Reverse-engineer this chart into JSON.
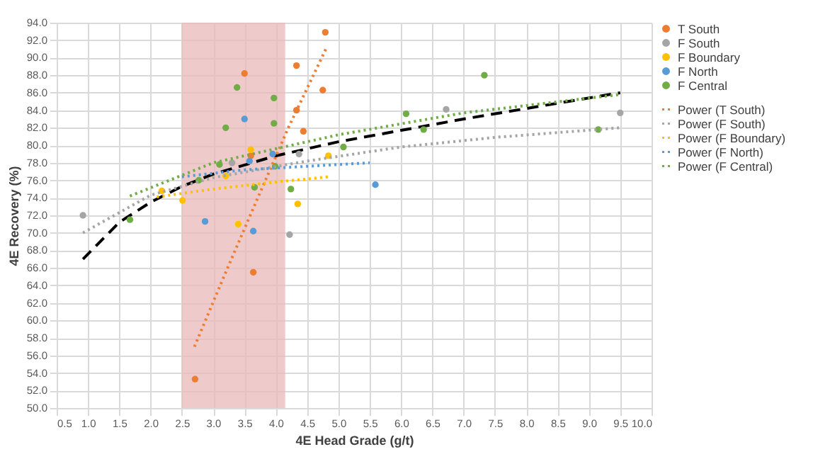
{
  "chart_data": {
    "type": "scatter",
    "xlabel": "4E Head Grade (g/t)",
    "ylabel": "4E Recovery (%)",
    "xlim": [
      0.5,
      10.0
    ],
    "ylim": [
      50.0,
      94.0
    ],
    "xticks": [
      {
        "value": 0.5,
        "label": "0.5"
      },
      {
        "value": 1,
        "label": "1.0"
      },
      {
        "value": 1.5,
        "label": "1.5"
      },
      {
        "value": 2,
        "label": "2.0"
      },
      {
        "value": 2.5,
        "label": "2.5"
      },
      {
        "value": 3,
        "label": "3.0"
      },
      {
        "value": 3.5,
        "label": "3.5"
      },
      {
        "value": 4,
        "label": "4.0"
      },
      {
        "value": 4.5,
        "label": "4.5"
      },
      {
        "value": 5,
        "label": "5.0"
      },
      {
        "value": 5.5,
        "label": "5.5"
      },
      {
        "value": 6,
        "label": "6.0"
      },
      {
        "value": 6.5,
        "label": "6.5"
      },
      {
        "value": 7,
        "label": "7.0"
      },
      {
        "value": 7.5,
        "label": "7.5"
      },
      {
        "value": 8,
        "label": "8.0"
      },
      {
        "value": 8.5,
        "label": "8.5"
      },
      {
        "value": 9,
        "label": "9.0"
      },
      {
        "value": 9.5,
        "label": "9.5"
      },
      {
        "value": 10,
        "label": "10.0"
      }
    ],
    "yticks": [
      {
        "value": 50,
        "label": "50.0"
      },
      {
        "value": 52,
        "label": "52.0"
      },
      {
        "value": 54,
        "label": "54.0"
      },
      {
        "value": 56,
        "label": "56.0"
      },
      {
        "value": 58,
        "label": "58.0"
      },
      {
        "value": 60,
        "label": "60.0"
      },
      {
        "value": 62,
        "label": "62.0"
      },
      {
        "value": 64,
        "label": "64.0"
      },
      {
        "value": 66,
        "label": "66.0"
      },
      {
        "value": 68,
        "label": "68.0"
      },
      {
        "value": 70,
        "label": "70.0"
      },
      {
        "value": 72,
        "label": "72.0"
      },
      {
        "value": 74,
        "label": "74.0"
      },
      {
        "value": 76,
        "label": "76.0"
      },
      {
        "value": 78,
        "label": "78.0"
      },
      {
        "value": 80,
        "label": "80.0"
      },
      {
        "value": 82,
        "label": "82.0"
      },
      {
        "value": 84,
        "label": "84.0"
      },
      {
        "value": 86,
        "label": "86.0"
      },
      {
        "value": 88,
        "label": "88.0"
      },
      {
        "value": 90,
        "label": "90.0"
      },
      {
        "value": 92,
        "label": "92.0"
      },
      {
        "value": 94,
        "label": "94.0"
      }
    ],
    "grid": true,
    "legend": "right",
    "marker": "circle",
    "bands": [
      {
        "axis": "x",
        "from": 2.5,
        "to": 4.15,
        "color": "#eab8ba"
      }
    ],
    "series": [
      {
        "name": "T South",
        "color": "#ed7d31",
        "x": [
          2.71,
          3.5,
          3.64,
          3.6,
          4.33,
          4.33,
          4.44,
          4.79,
          4.75
        ],
        "values": [
          53.3,
          88.2,
          65.5,
          78.8,
          89.1,
          84.0,
          81.6,
          92.9,
          86.3
        ]
      },
      {
        "name": "F South",
        "color": "#a5a5a5",
        "x": [
          0.92,
          4.22,
          4.37,
          6.72,
          9.5,
          3.3
        ],
        "values": [
          72.0,
          69.8,
          79.0,
          84.1,
          83.7,
          78.0
        ]
      },
      {
        "name": "F Boundary",
        "color": "#ffc000",
        "x": [
          2.18,
          2.51,
          3.2,
          3.4,
          3.6,
          4.35,
          4.84
        ],
        "values": [
          74.8,
          73.7,
          76.5,
          71.0,
          79.5,
          73.3,
          78.8
        ]
      },
      {
        "name": "F North",
        "color": "#5b9bd5",
        "x": [
          2.87,
          3.5,
          3.64,
          3.95,
          3.58,
          5.59
        ],
        "values": [
          71.3,
          83.0,
          70.2,
          79.0,
          78.2,
          75.5
        ]
      },
      {
        "name": "F Central",
        "color": "#70ad47",
        "x": [
          1.67,
          2.77,
          3.1,
          3.2,
          3.38,
          3.66,
          3.97,
          3.97,
          3.99,
          4.24,
          5.08,
          6.08,
          6.36,
          7.33,
          9.15
        ],
        "values": [
          71.5,
          76.0,
          77.8,
          82.0,
          86.6,
          75.2,
          85.4,
          82.5,
          77.6,
          75.0,
          79.8,
          83.6,
          81.8,
          88.0,
          81.8
        ]
      },
      {
        "name": "Power (T South)",
        "type": "line",
        "marker": "none",
        "line_style": "dotted",
        "color": "#ed7d31",
        "x": [
          2.7,
          3.2,
          3.7,
          4.2,
          4.8
        ],
        "values": [
          57.0,
          65.5,
          73.8,
          82.0,
          91.0
        ]
      },
      {
        "name": "Power (F South)",
        "type": "line",
        "marker": "none",
        "line_style": "dotted",
        "color": "#a5a5a5",
        "x": [
          0.92,
          2.0,
          3.0,
          4.5,
          6.0,
          7.5,
          9.5
        ],
        "values": [
          70.0,
          74.3,
          76.3,
          78.2,
          79.8,
          80.9,
          82.0
        ]
      },
      {
        "name": "Power (F Boundary)",
        "type": "line",
        "marker": "none",
        "line_style": "dotted",
        "color": "#ffc000",
        "x": [
          2.1,
          3.0,
          4.0,
          4.85
        ],
        "values": [
          74.1,
          75.0,
          75.8,
          76.4
        ]
      },
      {
        "name": "Power (F North)",
        "type": "line",
        "marker": "none",
        "line_style": "dotted",
        "color": "#5b9bd5",
        "x": [
          2.5,
          3.5,
          4.5,
          5.5
        ],
        "values": [
          76.4,
          77.2,
          77.6,
          78.0
        ]
      },
      {
        "name": "Power (F Central)",
        "type": "line",
        "marker": "none",
        "line_style": "dotted",
        "color": "#70ad47",
        "x": [
          1.67,
          3.0,
          5.0,
          7.0,
          9.5
        ],
        "values": [
          74.2,
          78.0,
          81.2,
          83.7,
          85.8
        ]
      },
      {
        "type": "line",
        "marker": "none",
        "line_style": "dashed",
        "color": "#000000",
        "x": [
          0.92,
          1.5,
          2.0,
          2.5,
          3.0,
          4.0,
          5.0,
          6.0,
          7.0,
          8.0,
          9.5
        ],
        "values": [
          67.0,
          71.2,
          73.5,
          75.3,
          76.7,
          78.8,
          80.4,
          81.7,
          83.0,
          84.2,
          86.0
        ]
      }
    ]
  }
}
